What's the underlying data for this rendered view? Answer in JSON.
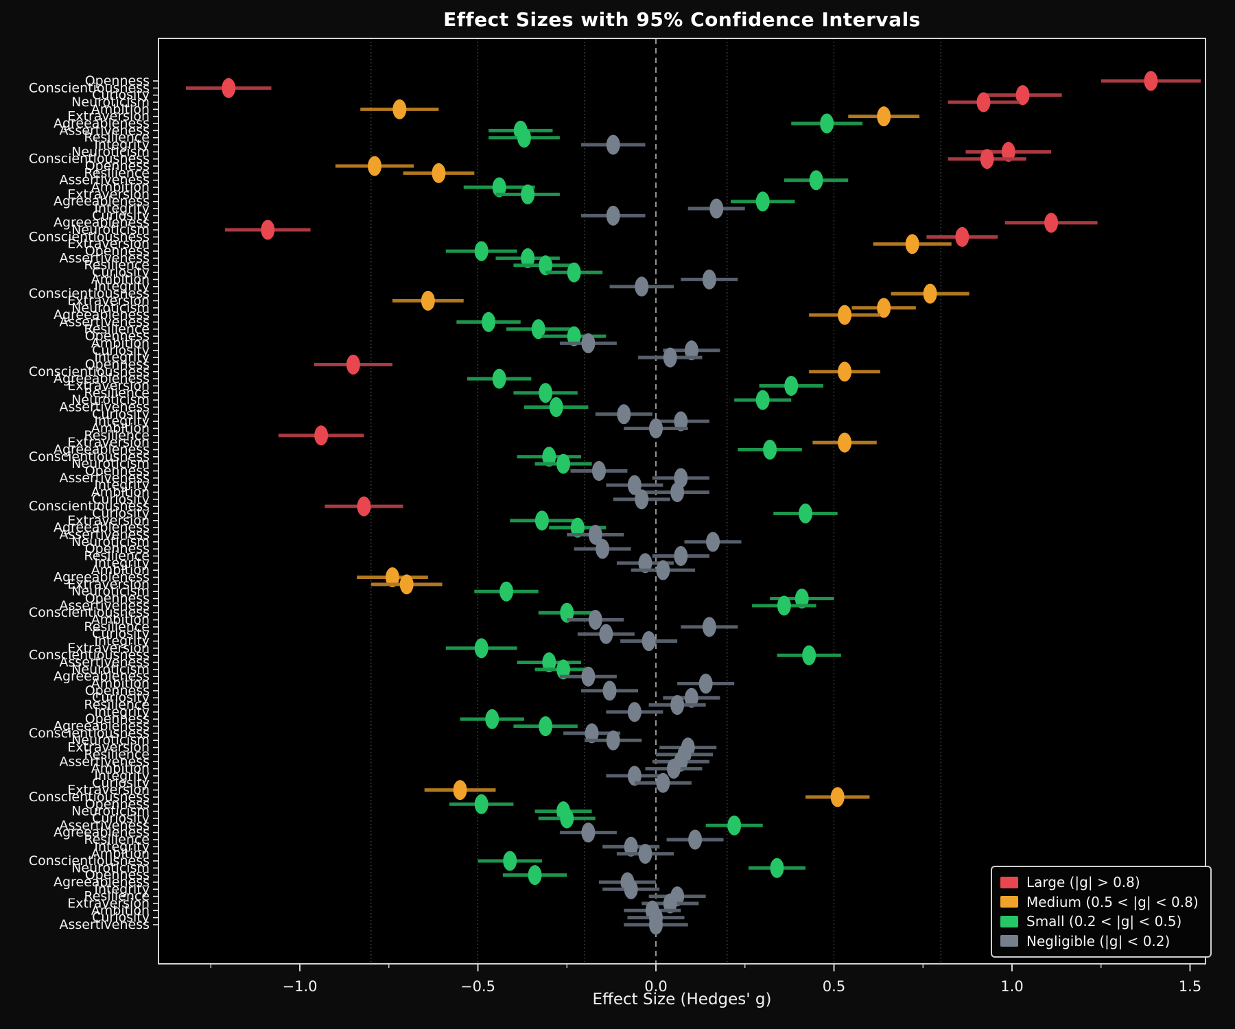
{
  "title": "Effect Sizes with 95% Confidence Intervals",
  "xlabel": "Effect Size (Hedges' g)",
  "legend": {
    "items": [
      {
        "label": "Large (|g| > 0.8)",
        "category": "large"
      },
      {
        "label": "Medium (0.5 < |g| < 0.8)",
        "category": "medium"
      },
      {
        "label": "Small (0.2 < |g| < 0.5)",
        "category": "small"
      },
      {
        "label": "Negligible (|g| < 0.2)",
        "category": "negligible"
      }
    ]
  },
  "colors": {
    "large": "#e8474f",
    "medium": "#f0a22a",
    "small": "#26c565",
    "negligible": "#76808d"
  },
  "bar_colors": {
    "large": "#aa3a41",
    "medium": "#b2781f",
    "small": "#1c954c",
    "negligible": "#575f6b"
  },
  "chart_data": {
    "type": "scatter",
    "subtype": "forest-plot",
    "title": "Effect Sizes with 95% Confidence Intervals",
    "xlabel": "Effect Size (Hedges' g)",
    "xlim": [
      -1.4,
      1.545
    ],
    "x_ticks": [
      -1.0,
      -0.5,
      0.0,
      0.5,
      1.0,
      1.5
    ],
    "x_tick_labels": [
      "−1.0",
      "−0.5",
      "0.0",
      "0.5",
      "1.0",
      "1.5"
    ],
    "x_minor_ticks": [
      -1.25,
      -0.75,
      -0.25,
      0.25,
      0.75,
      1.25
    ],
    "gridlines": [
      -0.8,
      -0.5,
      -0.2,
      0.2,
      0.5,
      0.8
    ],
    "zero_line": 0.0,
    "legend_position": "lower right",
    "rows_columns": [
      "label",
      "g",
      "ci",
      "category"
    ],
    "rows": [
      [
        "Openness",
        1.39,
        0.14,
        "large"
      ],
      [
        "Conscientiousness",
        -1.2,
        0.12,
        "large"
      ],
      [
        "Curiosity",
        1.03,
        0.11,
        "large"
      ],
      [
        "Neuroticism",
        0.92,
        0.1,
        "large"
      ],
      [
        "Ambition",
        -0.72,
        0.11,
        "medium"
      ],
      [
        "Extraversion",
        0.64,
        0.1,
        "medium"
      ],
      [
        "Agreeableness",
        0.48,
        0.1,
        "small"
      ],
      [
        "Assertiveness",
        -0.38,
        0.09,
        "small"
      ],
      [
        "Resilience",
        -0.37,
        0.1,
        "small"
      ],
      [
        "Integrity",
        -0.12,
        0.09,
        "negligible"
      ],
      [
        "Neuroticism",
        0.99,
        0.12,
        "large"
      ],
      [
        "Conscientiousness",
        0.93,
        0.11,
        "large"
      ],
      [
        "Openness",
        -0.79,
        0.11,
        "medium"
      ],
      [
        "Resilience",
        -0.61,
        0.1,
        "medium"
      ],
      [
        "Assertiveness",
        0.45,
        0.09,
        "small"
      ],
      [
        "Ambition",
        -0.44,
        0.1,
        "small"
      ],
      [
        "Extraversion",
        -0.36,
        0.09,
        "small"
      ],
      [
        "Agreeableness",
        0.3,
        0.09,
        "small"
      ],
      [
        "Integrity",
        0.17,
        0.08,
        "negligible"
      ],
      [
        "Curiosity",
        -0.12,
        0.09,
        "negligible"
      ],
      [
        "Agreeableness",
        1.11,
        0.13,
        "large"
      ],
      [
        "Neuroticism",
        -1.09,
        0.12,
        "large"
      ],
      [
        "Conscientiousness",
        0.86,
        0.1,
        "large"
      ],
      [
        "Extraversion",
        0.72,
        0.11,
        "medium"
      ],
      [
        "Openness",
        -0.49,
        0.1,
        "small"
      ],
      [
        "Assertiveness",
        -0.36,
        0.09,
        "small"
      ],
      [
        "Resilience",
        -0.31,
        0.09,
        "small"
      ],
      [
        "Curiosity",
        -0.23,
        0.08,
        "small"
      ],
      [
        "Ambition",
        0.15,
        0.08,
        "negligible"
      ],
      [
        "Integrity",
        -0.04,
        0.09,
        "negligible"
      ],
      [
        "Conscientiousness",
        0.77,
        0.11,
        "medium"
      ],
      [
        "Extraversion",
        -0.64,
        0.1,
        "medium"
      ],
      [
        "Neuroticism",
        0.64,
        0.09,
        "medium"
      ],
      [
        "Agreeableness",
        0.53,
        0.1,
        "medium"
      ],
      [
        "Assertiveness",
        -0.47,
        0.09,
        "small"
      ],
      [
        "Resilience",
        -0.33,
        0.09,
        "small"
      ],
      [
        "Openness",
        -0.23,
        0.09,
        "small"
      ],
      [
        "Ambition",
        -0.19,
        0.08,
        "negligible"
      ],
      [
        "Curiosity",
        0.1,
        0.08,
        "negligible"
      ],
      [
        "Integrity",
        0.04,
        0.09,
        "negligible"
      ],
      [
        "Openness",
        -0.85,
        0.11,
        "large"
      ],
      [
        "Conscientiousness",
        0.53,
        0.1,
        "medium"
      ],
      [
        "Agreeableness",
        -0.44,
        0.09,
        "small"
      ],
      [
        "Extraversion",
        0.38,
        0.09,
        "small"
      ],
      [
        "Resilience",
        -0.31,
        0.09,
        "small"
      ],
      [
        "Neuroticism",
        0.3,
        0.08,
        "small"
      ],
      [
        "Assertiveness",
        -0.28,
        0.09,
        "small"
      ],
      [
        "Curiosity",
        -0.09,
        0.08,
        "negligible"
      ],
      [
        "Integrity",
        0.07,
        0.08,
        "negligible"
      ],
      [
        "Ambition",
        0.0,
        0.09,
        "negligible"
      ],
      [
        "Resilience",
        -0.94,
        0.12,
        "large"
      ],
      [
        "Extraversion",
        0.53,
        0.09,
        "medium"
      ],
      [
        "Agreeableness",
        0.32,
        0.09,
        "small"
      ],
      [
        "Conscientiousness",
        -0.3,
        0.09,
        "small"
      ],
      [
        "Neuroticism",
        -0.26,
        0.08,
        "small"
      ],
      [
        "Openness",
        -0.16,
        0.08,
        "negligible"
      ],
      [
        "Assertiveness",
        0.07,
        0.08,
        "negligible"
      ],
      [
        "Integrity",
        -0.06,
        0.08,
        "negligible"
      ],
      [
        "Ambition",
        0.06,
        0.09,
        "negligible"
      ],
      [
        "Curiosity",
        -0.04,
        0.08,
        "negligible"
      ],
      [
        "Conscientiousness",
        -0.82,
        0.11,
        "large"
      ],
      [
        "Curiosity",
        0.42,
        0.09,
        "small"
      ],
      [
        "Extraversion",
        -0.32,
        0.09,
        "small"
      ],
      [
        "Agreeableness",
        -0.22,
        0.08,
        "small"
      ],
      [
        "Assertiveness",
        -0.17,
        0.08,
        "negligible"
      ],
      [
        "Neuroticism",
        0.16,
        0.08,
        "negligible"
      ],
      [
        "Openness",
        -0.15,
        0.08,
        "negligible"
      ],
      [
        "Resilience",
        0.07,
        0.08,
        "negligible"
      ],
      [
        "Integrity",
        -0.03,
        0.08,
        "negligible"
      ],
      [
        "Ambition",
        0.02,
        0.09,
        "negligible"
      ],
      [
        "Agreeableness",
        -0.74,
        0.1,
        "medium"
      ],
      [
        "Extraversion",
        -0.7,
        0.1,
        "medium"
      ],
      [
        "Neuroticism",
        -0.42,
        0.09,
        "small"
      ],
      [
        "Openness",
        0.41,
        0.09,
        "small"
      ],
      [
        "Assertiveness",
        0.36,
        0.09,
        "small"
      ],
      [
        "Conscientiousness",
        -0.25,
        0.08,
        "small"
      ],
      [
        "Ambition",
        -0.17,
        0.08,
        "negligible"
      ],
      [
        "Resilience",
        0.15,
        0.08,
        "negligible"
      ],
      [
        "Curiosity",
        -0.14,
        0.08,
        "negligible"
      ],
      [
        "Integrity",
        -0.02,
        0.08,
        "negligible"
      ],
      [
        "Extraversion",
        -0.49,
        0.1,
        "small"
      ],
      [
        "Conscientiousness",
        0.43,
        0.09,
        "small"
      ],
      [
        "Assertiveness",
        -0.3,
        0.09,
        "small"
      ],
      [
        "Neuroticism",
        -0.26,
        0.08,
        "small"
      ],
      [
        "Agreeableness",
        -0.19,
        0.08,
        "negligible"
      ],
      [
        "Ambition",
        0.14,
        0.08,
        "negligible"
      ],
      [
        "Openness",
        -0.13,
        0.08,
        "negligible"
      ],
      [
        "Curiosity",
        0.1,
        0.08,
        "negligible"
      ],
      [
        "Resilience",
        0.06,
        0.08,
        "negligible"
      ],
      [
        "Integrity",
        -0.06,
        0.08,
        "negligible"
      ],
      [
        "Openness",
        -0.46,
        0.09,
        "small"
      ],
      [
        "Agreeableness",
        -0.31,
        0.09,
        "small"
      ],
      [
        "Conscientiousness",
        -0.18,
        0.08,
        "negligible"
      ],
      [
        "Neuroticism",
        -0.12,
        0.08,
        "negligible"
      ],
      [
        "Extraversion",
        0.09,
        0.08,
        "negligible"
      ],
      [
        "Resilience",
        0.08,
        0.08,
        "negligible"
      ],
      [
        "Assertiveness",
        0.07,
        0.08,
        "negligible"
      ],
      [
        "Ambition",
        0.05,
        0.08,
        "negligible"
      ],
      [
        "Integrity",
        -0.06,
        0.08,
        "negligible"
      ],
      [
        "Curiosity",
        0.02,
        0.08,
        "negligible"
      ],
      [
        "Extraversion",
        -0.55,
        0.1,
        "medium"
      ],
      [
        "Conscientiousness",
        0.51,
        0.09,
        "medium"
      ],
      [
        "Openness",
        -0.49,
        0.09,
        "small"
      ],
      [
        "Neuroticism",
        -0.26,
        0.08,
        "small"
      ],
      [
        "Curiosity",
        -0.25,
        0.08,
        "small"
      ],
      [
        "Assertiveness",
        0.22,
        0.08,
        "small"
      ],
      [
        "Agreeableness",
        -0.19,
        0.08,
        "negligible"
      ],
      [
        "Resilience",
        0.11,
        0.08,
        "negligible"
      ],
      [
        "Integrity",
        -0.07,
        0.08,
        "negligible"
      ],
      [
        "Ambition",
        -0.03,
        0.08,
        "negligible"
      ],
      [
        "Conscientiousness",
        -0.41,
        0.09,
        "small"
      ],
      [
        "Neuroticism",
        0.34,
        0.08,
        "small"
      ],
      [
        "Openness",
        -0.34,
        0.09,
        "small"
      ],
      [
        "Agreeableness",
        -0.08,
        0.08,
        "negligible"
      ],
      [
        "Integrity",
        -0.07,
        0.08,
        "negligible"
      ],
      [
        "Resilience",
        0.06,
        0.08,
        "negligible"
      ],
      [
        "Extraversion",
        0.04,
        0.08,
        "negligible"
      ],
      [
        "Ambition",
        -0.01,
        0.08,
        "negligible"
      ],
      [
        "Curiosity",
        0.0,
        0.08,
        "negligible"
      ],
      [
        "Assertiveness",
        0.0,
        0.09,
        "negligible"
      ]
    ]
  }
}
